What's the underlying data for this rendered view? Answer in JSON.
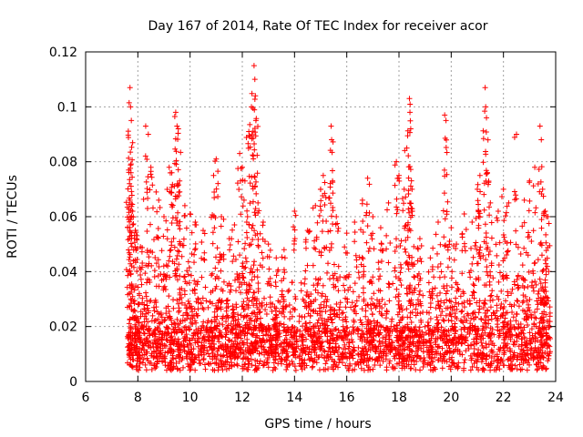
{
  "chart_data": {
    "type": "scatter",
    "title": "Day 167 of 2014, Rate Of TEC Index for receiver acor",
    "xlabel": "GPS time / hours",
    "ylabel": "ROTI / TECUs",
    "xlim": [
      6,
      24
    ],
    "ylim": [
      0,
      0.12
    ],
    "xticks": [
      6,
      8,
      10,
      12,
      14,
      16,
      18,
      20,
      22,
      24
    ],
    "yticks": [
      0,
      0.02,
      0.04,
      0.06,
      0.08,
      0.1,
      0.12
    ],
    "xtick_labels": [
      "6",
      "8",
      "10",
      "12",
      "14",
      "16",
      "18",
      "20",
      "22",
      "24"
    ],
    "ytick_labels": [
      "0",
      "0.02",
      "0.04",
      "0.06",
      "0.08",
      "0.1",
      "0.12"
    ],
    "grid": true,
    "marker": "+",
    "marker_color": "#ff0000",
    "series": [
      {
        "name": "acor",
        "x_range": [
          7.6,
          23.8
        ],
        "points": [
          [
            7.7,
            0.107
          ],
          [
            7.72,
            0.1
          ],
          [
            7.75,
            0.095
          ],
          [
            7.65,
            0.077
          ],
          [
            7.68,
            0.072
          ],
          [
            7.7,
            0.066
          ],
          [
            7.8,
            0.062
          ],
          [
            7.9,
            0.055
          ],
          [
            7.95,
            0.052
          ],
          [
            8.1,
            0.049
          ],
          [
            8.3,
            0.093
          ],
          [
            8.4,
            0.09
          ],
          [
            8.5,
            0.078
          ],
          [
            8.7,
            0.069
          ],
          [
            8.8,
            0.066
          ],
          [
            9.0,
            0.06
          ],
          [
            9.2,
            0.078
          ],
          [
            9.3,
            0.076
          ],
          [
            9.45,
            0.098
          ],
          [
            9.5,
            0.093
          ],
          [
            9.55,
            0.092
          ],
          [
            9.6,
            0.073
          ],
          [
            9.8,
            0.064
          ],
          [
            10.0,
            0.061
          ],
          [
            10.2,
            0.058
          ],
          [
            10.5,
            0.055
          ],
          [
            10.9,
            0.075
          ],
          [
            11.0,
            0.081
          ],
          [
            11.2,
            0.06
          ],
          [
            11.5,
            0.052
          ],
          [
            11.7,
            0.057
          ],
          [
            11.9,
            0.083
          ],
          [
            12.0,
            0.078
          ],
          [
            12.1,
            0.073
          ],
          [
            12.2,
            0.06
          ],
          [
            12.25,
            0.091
          ],
          [
            12.35,
            0.1
          ],
          [
            12.45,
            0.115
          ],
          [
            12.48,
            0.11
          ],
          [
            12.5,
            0.104
          ],
          [
            12.52,
            0.095
          ],
          [
            12.6,
            0.065
          ],
          [
            12.8,
            0.058
          ],
          [
            13.0,
            0.05
          ],
          [
            13.3,
            0.045
          ],
          [
            13.6,
            0.048
          ],
          [
            14.0,
            0.062
          ],
          [
            14.5,
            0.055
          ],
          [
            14.8,
            0.064
          ],
          [
            15.0,
            0.07
          ],
          [
            15.1,
            0.075
          ],
          [
            15.2,
            0.067
          ],
          [
            15.4,
            0.093
          ],
          [
            15.42,
            0.088
          ],
          [
            15.6,
            0.06
          ],
          [
            16.0,
            0.054
          ],
          [
            16.3,
            0.058
          ],
          [
            16.6,
            0.066
          ],
          [
            16.8,
            0.074
          ],
          [
            17.0,
            0.06
          ],
          [
            17.3,
            0.056
          ],
          [
            17.6,
            0.065
          ],
          [
            17.9,
            0.08
          ],
          [
            18.0,
            0.075
          ],
          [
            18.2,
            0.07
          ],
          [
            18.3,
            0.085
          ],
          [
            18.4,
            0.103
          ],
          [
            18.42,
            0.098
          ],
          [
            18.45,
            0.092
          ],
          [
            18.5,
            0.07
          ],
          [
            18.8,
            0.052
          ],
          [
            19.2,
            0.045
          ],
          [
            19.5,
            0.058
          ],
          [
            19.75,
            0.097
          ],
          [
            19.8,
            0.095
          ],
          [
            20.0,
            0.056
          ],
          [
            20.2,
            0.05
          ],
          [
            20.5,
            0.061
          ],
          [
            20.8,
            0.058
          ],
          [
            21.0,
            0.07
          ],
          [
            21.1,
            0.075
          ],
          [
            21.3,
            0.107
          ],
          [
            21.32,
            0.1
          ],
          [
            21.35,
            0.096
          ],
          [
            21.5,
            0.065
          ],
          [
            21.8,
            0.062
          ],
          [
            22.0,
            0.07
          ],
          [
            22.2,
            0.065
          ],
          [
            22.5,
            0.09
          ],
          [
            22.8,
            0.066
          ],
          [
            23.0,
            0.073
          ],
          [
            23.2,
            0.078
          ],
          [
            23.4,
            0.093
          ],
          [
            23.45,
            0.088
          ],
          [
            23.5,
            0.07
          ],
          [
            23.6,
            0.062
          ],
          [
            23.7,
            0.06
          ]
        ]
      }
    ]
  }
}
